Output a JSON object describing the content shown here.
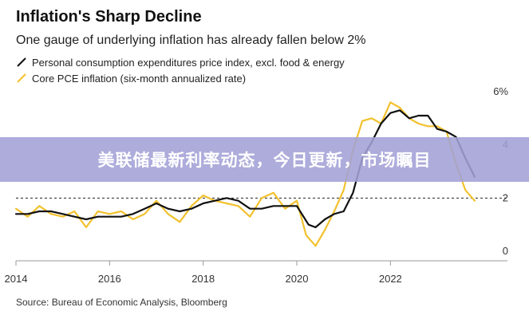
{
  "title": "Inflation's Sharp Decline",
  "subtitle": "One gauge of underlying inflation has already fallen below 2%",
  "legend": [
    {
      "label": "Personal consumption expenditures price index, excl. food & energy",
      "color": "#111111"
    },
    {
      "label": "Core PCE inflation (six-month annualized rate)",
      "color": "#f2c12e"
    }
  ],
  "source": "Source: Bureau of Economic Analysis, Bloomberg",
  "banner": "美联储最新利率动态，今日更新，市场瞩目",
  "chart_data": {
    "type": "line",
    "title": "Inflation's Sharp Decline",
    "xlabel": "",
    "ylabel": "",
    "xlim": [
      2014,
      2024.5
    ],
    "ylim": [
      0,
      6
    ],
    "x_ticks": [
      2014,
      2016,
      2018,
      2020,
      2022
    ],
    "x_tick_labels": [
      "2014",
      "2016",
      "2018",
      "2020",
      "2022"
    ],
    "y_ticks": [
      0,
      2,
      4,
      6
    ],
    "y_tick_labels": [
      "0",
      "2",
      "4",
      "6%"
    ],
    "reference_line": {
      "y": 2,
      "style": "dashed"
    },
    "series": [
      {
        "name": "Personal consumption expenditures price index, excl. food & energy",
        "color": "#111111",
        "x": [
          2014.0,
          2014.25,
          2014.5,
          2014.75,
          2015.0,
          2015.25,
          2015.5,
          2015.75,
          2016.0,
          2016.25,
          2016.5,
          2016.75,
          2017.0,
          2017.25,
          2017.5,
          2017.75,
          2018.0,
          2018.25,
          2018.5,
          2018.75,
          2019.0,
          2019.25,
          2019.5,
          2019.75,
          2020.0,
          2020.25,
          2020.4,
          2020.6,
          2020.8,
          2021.0,
          2021.2,
          2021.4,
          2021.6,
          2021.8,
          2022.0,
          2022.2,
          2022.4,
          2022.6,
          2022.8,
          2023.0,
          2023.2,
          2023.4,
          2023.6,
          2023.8
        ],
        "values": [
          1.4,
          1.4,
          1.5,
          1.5,
          1.4,
          1.3,
          1.2,
          1.3,
          1.3,
          1.3,
          1.4,
          1.6,
          1.8,
          1.6,
          1.5,
          1.6,
          1.8,
          1.9,
          2.0,
          1.9,
          1.6,
          1.6,
          1.7,
          1.7,
          1.7,
          1.0,
          0.9,
          1.2,
          1.4,
          1.5,
          2.2,
          3.5,
          4.1,
          4.8,
          5.2,
          5.3,
          5.0,
          5.1,
          5.1,
          4.6,
          4.5,
          4.3,
          3.5,
          2.8
        ],
        "line_width": 2.2
      },
      {
        "name": "Core PCE inflation (six-month annualized rate)",
        "color": "#f2c12e",
        "x": [
          2014.0,
          2014.25,
          2014.5,
          2014.75,
          2015.0,
          2015.25,
          2015.5,
          2015.75,
          2016.0,
          2016.25,
          2016.5,
          2016.75,
          2017.0,
          2017.25,
          2017.5,
          2017.75,
          2018.0,
          2018.25,
          2018.5,
          2018.75,
          2019.0,
          2019.25,
          2019.5,
          2019.75,
          2020.0,
          2020.2,
          2020.4,
          2020.6,
          2020.8,
          2021.0,
          2021.2,
          2021.4,
          2021.6,
          2021.8,
          2022.0,
          2022.2,
          2022.4,
          2022.6,
          2022.8,
          2023.0,
          2023.2,
          2023.4,
          2023.6,
          2023.8
        ],
        "values": [
          1.6,
          1.3,
          1.7,
          1.4,
          1.3,
          1.5,
          0.9,
          1.5,
          1.4,
          1.5,
          1.2,
          1.4,
          1.9,
          1.4,
          1.1,
          1.7,
          2.1,
          1.9,
          1.8,
          1.7,
          1.3,
          2.0,
          2.2,
          1.6,
          1.9,
          0.6,
          0.2,
          0.8,
          1.5,
          2.3,
          3.8,
          4.9,
          5.0,
          4.8,
          5.6,
          5.4,
          5.0,
          4.8,
          4.7,
          4.7,
          4.5,
          3.3,
          2.3,
          1.9
        ],
        "line_width": 2.2
      }
    ]
  }
}
